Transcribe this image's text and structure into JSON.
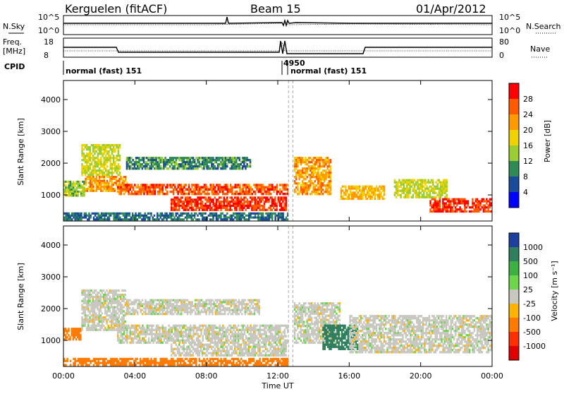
{
  "header": {
    "station": "Kerguelen (fitACF)",
    "beam": "Beam 15",
    "date": "01/Apr/2012"
  },
  "strips": {
    "nsky_label": "N.Sky",
    "nsearch_label": "N.Search",
    "count_ticks": [
      "10^5",
      "10^0"
    ],
    "freq_label_1": "Freq.",
    "freq_label_2": "[MHz]",
    "freq_ticks": [
      "18",
      "8"
    ],
    "nave_label": "Nave",
    "nave_ticks": [
      "80",
      "0"
    ],
    "cpid_label": "CPID",
    "cpid_entries": [
      "normal (fast) 151",
      "4950",
      "normal (fast) 151"
    ]
  },
  "chart_data": [
    {
      "type": "heatmap",
      "panel": "power",
      "xlabel": "",
      "ylabel": "Slant Range [km]",
      "x_ticks": [
        "00:00",
        "04:00",
        "08:00",
        "12:00",
        "16:00",
        "20:00",
        "00:00"
      ],
      "x_range_hours": [
        0,
        24
      ],
      "y_ticks": [
        "1000",
        "2000",
        "3000",
        "4000"
      ],
      "ylim": [
        180,
        4600
      ],
      "colorbar_label": "Power [dB]",
      "colorbar_ticks": [
        "28",
        "24",
        "20",
        "16",
        "12",
        "8",
        "4"
      ],
      "colorbar_colors": [
        "#ff0000",
        "#ff5a00",
        "#ff9a00",
        "#f0d200",
        "#9acd32",
        "#2e8b57",
        "#1a4a9a",
        "#0000ff"
      ],
      "data_gap_hours": [
        12.6,
        12.85
      ],
      "regions": [
        {
          "t0": 0.0,
          "t1": 1.2,
          "r0": 950,
          "r1": 1450,
          "value_db": 12
        },
        {
          "t0": 1.0,
          "t1": 3.2,
          "r0": 1600,
          "r1": 2600,
          "value_db": 14
        },
        {
          "t0": 1.2,
          "t1": 3.6,
          "r0": 1100,
          "r1": 1600,
          "value_db": 20
        },
        {
          "t0": 3.0,
          "t1": 12.6,
          "r0": 1000,
          "r1": 1350,
          "value_db": 24
        },
        {
          "t0": 3.5,
          "t1": 10.5,
          "r0": 1800,
          "r1": 2200,
          "value_db": 8
        },
        {
          "t0": 6.0,
          "t1": 12.5,
          "r0": 500,
          "r1": 950,
          "value_db": 26
        },
        {
          "t0": 12.9,
          "t1": 15.0,
          "r0": 1000,
          "r1": 2200,
          "value_db": 20
        },
        {
          "t0": 15.5,
          "t1": 18.0,
          "r0": 850,
          "r1": 1300,
          "value_db": 18
        },
        {
          "t0": 18.5,
          "t1": 21.5,
          "r0": 900,
          "r1": 1500,
          "value_db": 14
        },
        {
          "t0": 20.5,
          "t1": 24.0,
          "r0": 450,
          "r1": 900,
          "value_db": 26
        },
        {
          "t0": 0.0,
          "t1": 12.6,
          "r0": 200,
          "r1": 450,
          "value_db": 6
        }
      ]
    },
    {
      "type": "heatmap",
      "panel": "velocity",
      "xlabel": "Time UT",
      "ylabel": "Slant Range [km]",
      "x_ticks": [
        "00:00",
        "04:00",
        "08:00",
        "12:00",
        "16:00",
        "20:00",
        "00:00"
      ],
      "x_range_hours": [
        0,
        24
      ],
      "y_ticks": [
        "1000",
        "2000",
        "3000",
        "4000"
      ],
      "ylim": [
        180,
        4600
      ],
      "colorbar_label": "Velocity [m s⁻¹]",
      "colorbar_ticks": [
        "1000",
        "500",
        "100",
        "25",
        "-25",
        "-100",
        "-500",
        "-1000"
      ],
      "colorbar_colors": [
        "#1f3f9f",
        "#2f7f5f",
        "#3cb040",
        "#6bd64a",
        "#c8c8c0",
        "#ffb300",
        "#ff7a00",
        "#ff3000",
        "#e00000"
      ],
      "data_gap_hours": [
        12.6,
        12.85
      ],
      "regions": [
        {
          "t0": 0.0,
          "t1": 1.0,
          "r0": 1000,
          "r1": 1400,
          "value_ms": -300
        },
        {
          "t0": 1.0,
          "t1": 3.5,
          "r0": 1300,
          "r1": 2600,
          "value_ms": 0
        },
        {
          "t0": 3.0,
          "t1": 12.6,
          "r0": 900,
          "r1": 1500,
          "value_ms": 0
        },
        {
          "t0": 3.5,
          "t1": 11.0,
          "r0": 1800,
          "r1": 2300,
          "value_ms": 0
        },
        {
          "t0": 6.0,
          "t1": 12.5,
          "r0": 500,
          "r1": 900,
          "value_ms": 0
        },
        {
          "t0": 12.9,
          "t1": 15.5,
          "r0": 900,
          "r1": 2200,
          "value_ms": 0
        },
        {
          "t0": 14.5,
          "t1": 16.5,
          "r0": 700,
          "r1": 1500,
          "value_ms": 600
        },
        {
          "t0": 16.0,
          "t1": 24.0,
          "r0": 600,
          "r1": 1800,
          "value_ms": 0
        },
        {
          "t0": 0.0,
          "t1": 12.6,
          "r0": 200,
          "r1": 450,
          "value_ms": -150
        }
      ]
    }
  ]
}
